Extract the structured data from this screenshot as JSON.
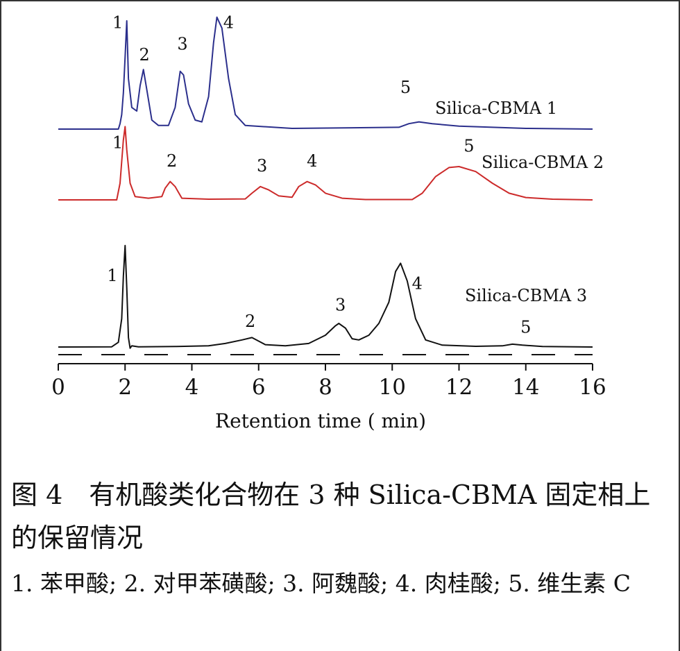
{
  "chart_data": {
    "type": "line",
    "xlabel": "Retention  time ( min)",
    "xlim": [
      0,
      16
    ],
    "x_ticks": [
      0,
      2,
      4,
      6,
      8,
      10,
      12,
      14,
      16
    ],
    "series": [
      {
        "name": "Silica-CBMA 1",
        "color": "#2b2f8c",
        "points": [
          [
            0,
            0
          ],
          [
            1.8,
            0
          ],
          [
            1.85,
            0.15
          ],
          [
            1.9,
            0.4
          ],
          [
            1.95,
            1.0
          ],
          [
            2.0,
            2.0
          ],
          [
            2.05,
            3.0
          ],
          [
            2.1,
            1.4
          ],
          [
            2.2,
            0.6
          ],
          [
            2.35,
            0.5
          ],
          [
            2.45,
            1.2
          ],
          [
            2.55,
            1.65
          ],
          [
            2.65,
            1.1
          ],
          [
            2.8,
            0.25
          ],
          [
            3.0,
            0.1
          ],
          [
            3.3,
            0.1
          ],
          [
            3.5,
            0.6
          ],
          [
            3.65,
            1.6
          ],
          [
            3.75,
            1.5
          ],
          [
            3.9,
            0.7
          ],
          [
            4.1,
            0.25
          ],
          [
            4.3,
            0.2
          ],
          [
            4.5,
            0.9
          ],
          [
            4.65,
            2.4
          ],
          [
            4.75,
            3.1
          ],
          [
            4.9,
            2.8
          ],
          [
            5.1,
            1.4
          ],
          [
            5.3,
            0.4
          ],
          [
            5.6,
            0.1
          ],
          [
            7,
            0.02
          ],
          [
            10.2,
            0.05
          ],
          [
            10.5,
            0.15
          ],
          [
            10.8,
            0.2
          ],
          [
            11.2,
            0.15
          ],
          [
            12,
            0.08
          ],
          [
            14,
            0.02
          ],
          [
            16,
            0
          ]
        ],
        "peaks": [
          {
            "label": "1",
            "x": 1.78,
            "y": 2.8
          },
          {
            "label": "2",
            "x": 2.58,
            "y": 1.9
          },
          {
            "label": "3",
            "x": 3.72,
            "y": 2.2
          },
          {
            "label": "4",
            "x": 5.1,
            "y": 2.8
          },
          {
            "label": "5",
            "x": 10.4,
            "y": 1.0
          }
        ]
      },
      {
        "name": "Silica-CBMA 2",
        "color": "#cc2a2a",
        "points": [
          [
            0,
            0
          ],
          [
            1.75,
            0
          ],
          [
            1.85,
            0.5
          ],
          [
            1.95,
            1.8
          ],
          [
            2.0,
            2.2
          ],
          [
            2.05,
            1.5
          ],
          [
            2.15,
            0.5
          ],
          [
            2.3,
            0.1
          ],
          [
            2.7,
            0.05
          ],
          [
            3.1,
            0.1
          ],
          [
            3.2,
            0.35
          ],
          [
            3.35,
            0.55
          ],
          [
            3.5,
            0.4
          ],
          [
            3.7,
            0.05
          ],
          [
            4.5,
            0.02
          ],
          [
            5.6,
            0.03
          ],
          [
            5.8,
            0.2
          ],
          [
            6.05,
            0.4
          ],
          [
            6.3,
            0.3
          ],
          [
            6.6,
            0.12
          ],
          [
            7.0,
            0.08
          ],
          [
            7.2,
            0.4
          ],
          [
            7.45,
            0.55
          ],
          [
            7.7,
            0.45
          ],
          [
            8.0,
            0.2
          ],
          [
            8.5,
            0.05
          ],
          [
            9.2,
            0.01
          ],
          [
            10.6,
            0.01
          ],
          [
            10.9,
            0.2
          ],
          [
            11.3,
            0.7
          ],
          [
            11.7,
            0.97
          ],
          [
            12.0,
            1.0
          ],
          [
            12.5,
            0.85
          ],
          [
            13.0,
            0.5
          ],
          [
            13.5,
            0.2
          ],
          [
            14.0,
            0.07
          ],
          [
            14.8,
            0.02
          ],
          [
            16,
            0
          ]
        ],
        "peaks": [
          {
            "label": "1",
            "x": 1.78,
            "y": 1.55
          },
          {
            "label": "2",
            "x": 3.4,
            "y": 1.0
          },
          {
            "label": "3",
            "x": 6.1,
            "y": 0.85
          },
          {
            "label": "4",
            "x": 7.6,
            "y": 1.0
          },
          {
            "label": "5",
            "x": 12.3,
            "y": 1.45
          }
        ]
      },
      {
        "name": "Silica-CBMA 3",
        "color": "#111111",
        "points": [
          [
            0,
            0
          ],
          [
            1.6,
            0.01
          ],
          [
            1.8,
            0.2
          ],
          [
            1.9,
            1.2
          ],
          [
            1.95,
            3.0
          ],
          [
            2.0,
            4.3
          ],
          [
            2.05,
            2.5
          ],
          [
            2.1,
            0.4
          ],
          [
            2.15,
            -0.05
          ],
          [
            2.2,
            0.05
          ],
          [
            2.4,
            0.01
          ],
          [
            3.5,
            0.02
          ],
          [
            4.5,
            0.05
          ],
          [
            5.0,
            0.15
          ],
          [
            5.5,
            0.3
          ],
          [
            5.8,
            0.4
          ],
          [
            6.0,
            0.25
          ],
          [
            6.2,
            0.1
          ],
          [
            6.8,
            0.05
          ],
          [
            7.5,
            0.15
          ],
          [
            8.0,
            0.5
          ],
          [
            8.3,
            0.9
          ],
          [
            8.4,
            1.0
          ],
          [
            8.6,
            0.8
          ],
          [
            8.8,
            0.35
          ],
          [
            9.0,
            0.3
          ],
          [
            9.3,
            0.5
          ],
          [
            9.6,
            1.0
          ],
          [
            9.9,
            1.9
          ],
          [
            10.1,
            3.2
          ],
          [
            10.25,
            3.55
          ],
          [
            10.45,
            2.8
          ],
          [
            10.7,
            1.2
          ],
          [
            11.0,
            0.3
          ],
          [
            11.5,
            0.08
          ],
          [
            12.5,
            0.03
          ],
          [
            13.3,
            0.05
          ],
          [
            13.6,
            0.12
          ],
          [
            13.9,
            0.08
          ],
          [
            14.5,
            0.02
          ],
          [
            16,
            0
          ]
        ],
        "peaks": [
          {
            "label": "1",
            "x": 1.62,
            "y": 2.8
          },
          {
            "label": "2",
            "x": 5.75,
            "y": 0.85
          },
          {
            "label": "3",
            "x": 8.45,
            "y": 1.55
          },
          {
            "label": "4",
            "x": 10.75,
            "y": 2.45
          },
          {
            "label": "5",
            "x": 14.0,
            "y": 0.6
          }
        ]
      }
    ],
    "legend_placement": "inline labels next to each trace"
  },
  "caption": {
    "title": "图 4　有机酸类化合物在 3 种 Silica-CBMA 固定相上的保留情况",
    "legend": "1. 苯甲酸; 2. 对甲苯磺酸; 3. 阿魏酸; 4. 肉桂酸; 5. 维生素 C"
  }
}
